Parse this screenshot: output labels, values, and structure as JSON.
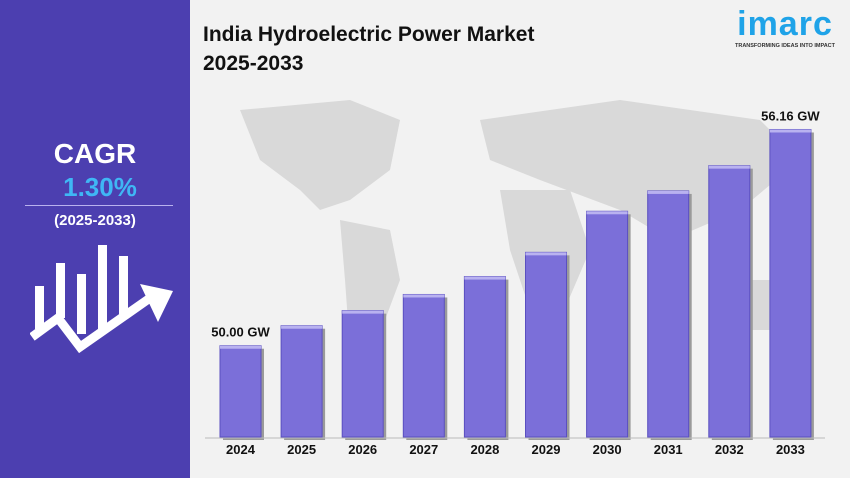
{
  "title_line1": "India Hydroelectric Power Market",
  "title_line2": "2025-2033",
  "logo": {
    "name": "imarc",
    "tagline": "TRANSFORMING IDEAS INTO IMPACT",
    "color": "#1fa3e8"
  },
  "sidebar": {
    "cagr_label": "CAGR",
    "cagr_value": "1.30%",
    "period": "(2025-2033)",
    "background": "#4c3fb0",
    "value_color": "#3fb7f5",
    "icon": "growth-chart-arrow-icon"
  },
  "chart_data": {
    "type": "bar",
    "title": "India Hydroelectric Power Market 2025-2033",
    "categories": [
      "2024",
      "2025",
      "2026",
      "2027",
      "2028",
      "2029",
      "2030",
      "2031",
      "2032",
      "2033"
    ],
    "values": [
      50.0,
      50.57,
      51.0,
      51.46,
      51.97,
      52.66,
      53.83,
      54.41,
      55.13,
      56.16
    ],
    "data_labels": {
      "0": "50.00 GW",
      "9": "56.16 GW"
    },
    "ylim": [
      47.4,
      57.0
    ],
    "grid": false,
    "bar_color": "#7b6fd9",
    "xlabel": "",
    "ylabel": ""
  }
}
